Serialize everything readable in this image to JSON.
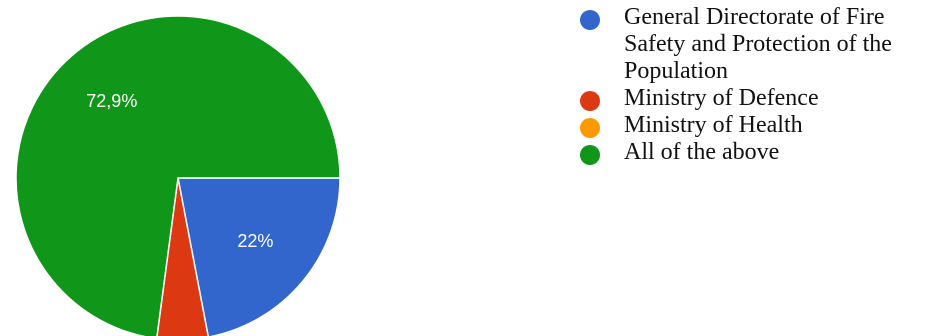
{
  "chart_data": {
    "type": "pie",
    "slices": [
      {
        "label": "General Directorate of Fire Safety and Protection of the Population",
        "value": 22.0,
        "color": "#3366cc",
        "display": "22%"
      },
      {
        "label": "Ministry of Defence",
        "value": 5.1,
        "color": "#dc3912",
        "display": ""
      },
      {
        "label": "Ministry of Health",
        "value": 0,
        "color": "#ff9900",
        "display": ""
      },
      {
        "label": "All of the above",
        "value": 72.9,
        "color": "#109618",
        "display": "72,9%"
      }
    ],
    "legend_position": "right"
  }
}
